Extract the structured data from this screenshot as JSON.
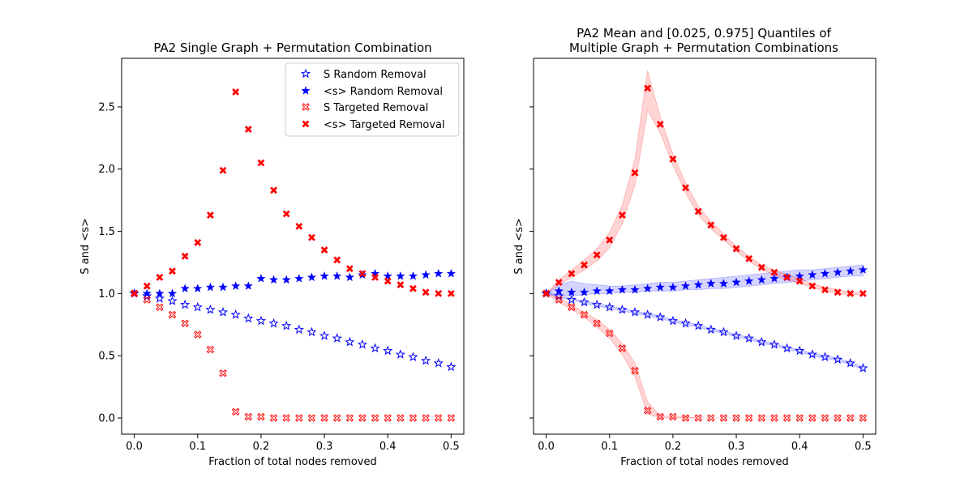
{
  "chart_data": [
    {
      "type": "scatter",
      "title": "PA2 Single Graph + Permutation Combination",
      "xlabel": "Fraction of total nodes removed",
      "ylabel": "S and <s>",
      "xlim": [
        -0.02,
        0.52
      ],
      "ylim": [
        -0.13,
        2.89
      ],
      "xticks": [
        "0.0",
        "0.1",
        "0.2",
        "0.3",
        "0.4",
        "0.5"
      ],
      "yticks": [
        "0.0",
        "0.5",
        "1.0",
        "1.5",
        "2.0",
        "2.5"
      ],
      "legend_position": "top-right",
      "x": [
        0.0,
        0.02,
        0.04,
        0.06,
        0.08,
        0.1,
        0.12,
        0.14,
        0.16,
        0.18,
        0.2,
        0.22,
        0.24,
        0.26,
        0.28,
        0.3,
        0.32,
        0.34,
        0.36,
        0.38,
        0.4,
        0.42,
        0.44,
        0.46,
        0.48,
        0.5
      ],
      "series": [
        {
          "name": "S Random Removal",
          "color": "#0000ff",
          "marker": "star-open",
          "values": [
            1.0,
            0.98,
            0.96,
            0.94,
            0.91,
            0.89,
            0.87,
            0.85,
            0.83,
            0.8,
            0.78,
            0.76,
            0.74,
            0.71,
            0.69,
            0.66,
            0.64,
            0.61,
            0.59,
            0.56,
            0.54,
            0.51,
            0.49,
            0.46,
            0.44,
            0.41
          ]
        },
        {
          "name": "<s> Random Removal",
          "color": "#0000ff",
          "marker": "star-filled",
          "values": [
            1.0,
            1.0,
            1.0,
            1.0,
            1.04,
            1.04,
            1.05,
            1.05,
            1.06,
            1.06,
            1.12,
            1.11,
            1.11,
            1.12,
            1.13,
            1.14,
            1.14,
            1.13,
            1.15,
            1.16,
            1.14,
            1.14,
            1.14,
            1.15,
            1.16,
            1.16
          ]
        },
        {
          "name": "S Targeted Removal",
          "color": "#ff0000",
          "marker": "x-open",
          "values": [
            1.0,
            0.95,
            0.89,
            0.83,
            0.76,
            0.67,
            0.55,
            0.36,
            0.05,
            0.01,
            0.01,
            0.0,
            0.0,
            0.0,
            0.0,
            0.0,
            0.0,
            0.0,
            0.0,
            0.0,
            0.0,
            0.0,
            0.0,
            0.0,
            0.0,
            0.0
          ]
        },
        {
          "name": "<s> Targeted Removal",
          "color": "#ff0000",
          "marker": "x-filled",
          "values": [
            1.0,
            1.06,
            1.13,
            1.18,
            1.3,
            1.41,
            1.63,
            1.99,
            2.62,
            2.32,
            2.05,
            1.83,
            1.64,
            1.54,
            1.45,
            1.35,
            1.27,
            1.2,
            1.16,
            1.13,
            1.1,
            1.07,
            1.04,
            1.01,
            1.0,
            1.0
          ]
        }
      ]
    },
    {
      "type": "scatter",
      "title": "PA2 Mean and [0.025, 0.975] Quantiles of",
      "subtitle": "Multiple Graph + Permutation Combinations",
      "xlabel": "Fraction of total nodes removed",
      "ylabel": "S and <s>",
      "xlim": [
        -0.02,
        0.52
      ],
      "ylim": [
        -0.13,
        2.89
      ],
      "xticks": [
        "0.0",
        "0.1",
        "0.2",
        "0.3",
        "0.4",
        "0.5"
      ],
      "x": [
        0.0,
        0.02,
        0.04,
        0.06,
        0.08,
        0.1,
        0.12,
        0.14,
        0.16,
        0.18,
        0.2,
        0.22,
        0.24,
        0.26,
        0.28,
        0.3,
        0.32,
        0.34,
        0.36,
        0.38,
        0.4,
        0.42,
        0.44,
        0.46,
        0.48,
        0.5
      ],
      "series": [
        {
          "color": "#0000ff",
          "marker": "star-open",
          "values": [
            1.0,
            0.98,
            0.95,
            0.93,
            0.91,
            0.89,
            0.87,
            0.85,
            0.83,
            0.81,
            0.78,
            0.76,
            0.74,
            0.71,
            0.69,
            0.66,
            0.64,
            0.61,
            0.59,
            0.56,
            0.54,
            0.51,
            0.49,
            0.47,
            0.44,
            0.4
          ],
          "band_low": [
            1.0,
            0.97,
            0.95,
            0.92,
            0.9,
            0.88,
            0.86,
            0.84,
            0.82,
            0.8,
            0.77,
            0.75,
            0.73,
            0.7,
            0.68,
            0.65,
            0.63,
            0.6,
            0.58,
            0.55,
            0.53,
            0.5,
            0.48,
            0.46,
            0.43,
            0.39
          ],
          "band_high": [
            1.0,
            0.99,
            0.96,
            0.94,
            0.92,
            0.9,
            0.88,
            0.86,
            0.84,
            0.82,
            0.79,
            0.77,
            0.75,
            0.72,
            0.7,
            0.67,
            0.65,
            0.62,
            0.6,
            0.57,
            0.55,
            0.52,
            0.5,
            0.48,
            0.45,
            0.41
          ]
        },
        {
          "color": "#0000ff",
          "marker": "star-filled",
          "values": [
            1.0,
            1.02,
            1.01,
            1.01,
            1.02,
            1.02,
            1.03,
            1.03,
            1.04,
            1.05,
            1.05,
            1.06,
            1.07,
            1.08,
            1.08,
            1.09,
            1.1,
            1.11,
            1.12,
            1.13,
            1.14,
            1.15,
            1.16,
            1.17,
            1.18,
            1.19
          ],
          "band_low": [
            1.0,
            0.99,
            0.98,
            0.99,
            1.0,
            1.0,
            1.01,
            1.01,
            1.02,
            1.02,
            1.02,
            1.03,
            1.03,
            1.04,
            1.04,
            1.05,
            1.06,
            1.07,
            1.08,
            1.09,
            1.1,
            1.11,
            1.12,
            1.13,
            1.14,
            1.14
          ],
          "band_high": [
            1.0,
            1.07,
            1.1,
            1.08,
            1.07,
            1.06,
            1.06,
            1.07,
            1.08,
            1.09,
            1.09,
            1.1,
            1.11,
            1.12,
            1.13,
            1.14,
            1.15,
            1.16,
            1.17,
            1.18,
            1.19,
            1.19,
            1.2,
            1.21,
            1.22,
            1.23
          ]
        },
        {
          "color": "#ff0000",
          "marker": "x-open",
          "values": [
            1.0,
            0.95,
            0.89,
            0.83,
            0.76,
            0.68,
            0.56,
            0.38,
            0.06,
            0.01,
            0.01,
            0.0,
            0.0,
            0.0,
            0.0,
            0.0,
            0.0,
            0.0,
            0.0,
            0.0,
            0.0,
            0.0,
            0.0,
            0.0,
            0.0,
            0.0
          ],
          "band_low": [
            1.0,
            0.93,
            0.87,
            0.81,
            0.73,
            0.64,
            0.51,
            0.33,
            0.03,
            0.0,
            0.0,
            0.0,
            0.0,
            0.0,
            0.0,
            0.0,
            0.0,
            0.0,
            0.0,
            0.0,
            0.0,
            0.0,
            0.0,
            0.0,
            0.0,
            0.0
          ],
          "band_high": [
            1.0,
            0.97,
            0.91,
            0.85,
            0.79,
            0.71,
            0.6,
            0.44,
            0.13,
            0.02,
            0.01,
            0.01,
            0.0,
            0.0,
            0.0,
            0.0,
            0.0,
            0.0,
            0.0,
            0.0,
            0.0,
            0.0,
            0.0,
            0.0,
            0.0,
            0.0
          ]
        },
        {
          "color": "#ff0000",
          "marker": "x-filled",
          "values": [
            1.0,
            1.09,
            1.16,
            1.23,
            1.31,
            1.43,
            1.63,
            1.97,
            2.65,
            2.36,
            2.08,
            1.85,
            1.66,
            1.55,
            1.45,
            1.36,
            1.28,
            1.21,
            1.17,
            1.13,
            1.1,
            1.06,
            1.03,
            1.01,
            1.0,
            1.0
          ],
          "band_low": [
            1.0,
            1.07,
            1.13,
            1.19,
            1.26,
            1.37,
            1.56,
            1.87,
            2.47,
            2.29,
            2.03,
            1.81,
            1.63,
            1.52,
            1.43,
            1.34,
            1.26,
            1.19,
            1.15,
            1.11,
            1.08,
            1.05,
            1.02,
            1.0,
            0.99,
            0.99
          ],
          "band_high": [
            1.0,
            1.11,
            1.19,
            1.27,
            1.36,
            1.49,
            1.71,
            2.08,
            2.79,
            2.42,
            2.12,
            1.89,
            1.7,
            1.58,
            1.48,
            1.38,
            1.3,
            1.23,
            1.19,
            1.15,
            1.12,
            1.08,
            1.05,
            1.03,
            1.01,
            1.01
          ]
        }
      ]
    }
  ]
}
